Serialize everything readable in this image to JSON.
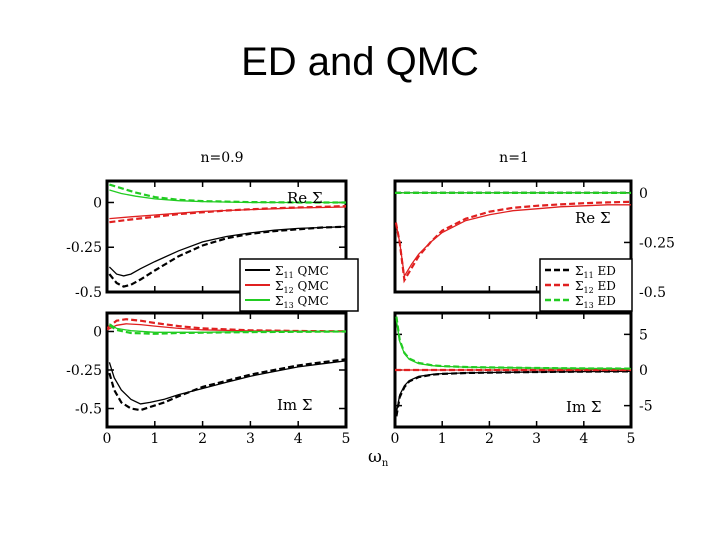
{
  "slide": {
    "title": "ED and QMC"
  },
  "figure": {
    "shared_xlabel": "ωn"
  },
  "colors": {
    "black": "#000000",
    "red": "#e02020",
    "green": "#22cc22"
  },
  "chart_data": [
    {
      "type": "line",
      "title": "n=0.9",
      "panel_label": "Re Σ",
      "xlim": [
        0,
        5
      ],
      "ylim": [
        -0.5,
        0.12
      ],
      "xticks": [],
      "yticks": [
        {
          "v": 0,
          "label": "0"
        },
        {
          "v": -0.25,
          "label": "-0.25"
        },
        {
          "v": -0.5,
          "label": "-0.5"
        }
      ],
      "legend": {
        "placement": "bottom-right",
        "entries": [
          {
            "sub": "11",
            "text": "QMC",
            "color": "black",
            "style": "solid"
          },
          {
            "sub": "12",
            "text": "QMC",
            "color": "red",
            "style": "solid"
          },
          {
            "sub": "13",
            "text": "QMC",
            "color": "green",
            "style": "solid"
          }
        ]
      },
      "series": [
        {
          "color": "black",
          "style": "solid",
          "x": [
            0.05,
            0.2,
            0.35,
            0.5,
            0.7,
            1,
            1.5,
            2,
            2.5,
            3,
            3.5,
            4,
            4.5,
            5
          ],
          "y": [
            -0.36,
            -0.4,
            -0.41,
            -0.4,
            -0.37,
            -0.33,
            -0.27,
            -0.22,
            -0.19,
            -0.17,
            -0.155,
            -0.145,
            -0.14,
            -0.135
          ]
        },
        {
          "color": "black",
          "style": "dashed",
          "x": [
            0.05,
            0.2,
            0.35,
            0.5,
            0.7,
            1,
            1.5,
            2,
            2.5,
            3,
            3.5,
            4,
            4.5,
            5
          ],
          "y": [
            -0.4,
            -0.45,
            -0.47,
            -0.46,
            -0.43,
            -0.38,
            -0.3,
            -0.24,
            -0.2,
            -0.175,
            -0.16,
            -0.15,
            -0.14,
            -0.135
          ]
        },
        {
          "color": "red",
          "style": "solid",
          "x": [
            0.05,
            0.5,
            1,
            1.5,
            2,
            2.5,
            3,
            3.5,
            4,
            4.5,
            5
          ],
          "y": [
            -0.09,
            -0.08,
            -0.07,
            -0.06,
            -0.05,
            -0.045,
            -0.04,
            -0.035,
            -0.03,
            -0.028,
            -0.025
          ]
        },
        {
          "color": "red",
          "style": "dashed",
          "x": [
            0.05,
            0.5,
            1,
            1.5,
            2,
            2.5,
            3,
            3.5,
            4,
            4.5,
            5
          ],
          "y": [
            -0.11,
            -0.095,
            -0.08,
            -0.065,
            -0.055,
            -0.045,
            -0.038,
            -0.032,
            -0.028,
            -0.024,
            -0.02
          ]
        },
        {
          "color": "green",
          "style": "solid",
          "x": [
            0.05,
            0.3,
            0.6,
            1,
            1.5,
            2,
            3,
            4,
            5
          ],
          "y": [
            0.07,
            0.05,
            0.035,
            0.02,
            0.01,
            0.005,
            0,
            0,
            0
          ]
        },
        {
          "color": "green",
          "style": "dashed",
          "x": [
            0.05,
            0.3,
            0.6,
            1,
            1.5,
            2,
            3,
            4,
            5
          ],
          "y": [
            0.1,
            0.08,
            0.055,
            0.03,
            0.015,
            0.008,
            0.002,
            0,
            0
          ]
        }
      ]
    },
    {
      "type": "line",
      "title": "n=1",
      "panel_label": "Re Σ",
      "xlim": [
        0,
        5
      ],
      "ylim": [
        -0.5,
        0.06
      ],
      "xticks": [],
      "yticks": [
        {
          "v": 0,
          "label": "0"
        },
        {
          "v": -0.25,
          "label": "-0.25"
        },
        {
          "v": -0.5,
          "label": "-0.5"
        }
      ],
      "legend": {
        "placement": "bottom-right",
        "entries": [
          {
            "sub": "11",
            "text": "ED",
            "color": "black",
            "style": "dashed"
          },
          {
            "sub": "12",
            "text": "ED",
            "color": "red",
            "style": "dashed"
          },
          {
            "sub": "13",
            "text": "ED",
            "color": "green",
            "style": "dashed"
          }
        ]
      },
      "series": [
        {
          "color": "black",
          "style": "solid",
          "x": [
            0,
            5
          ],
          "y": [
            0,
            0
          ]
        },
        {
          "color": "black",
          "style": "dashed",
          "x": [
            0,
            5
          ],
          "y": [
            0,
            0
          ]
        },
        {
          "color": "red",
          "style": "solid",
          "x": [
            0.02,
            0.1,
            0.2,
            0.35,
            0.5,
            0.75,
            1,
            1.5,
            2,
            2.5,
            3,
            3.5,
            4,
            4.5,
            5
          ],
          "y": [
            -0.15,
            -0.25,
            -0.42,
            -0.36,
            -0.31,
            -0.25,
            -0.2,
            -0.14,
            -0.11,
            -0.09,
            -0.08,
            -0.07,
            -0.065,
            -0.06,
            -0.06
          ]
        },
        {
          "color": "red",
          "style": "dashed",
          "x": [
            0.02,
            0.1,
            0.2,
            0.35,
            0.5,
            0.75,
            1,
            1.5,
            2,
            2.5,
            3,
            3.5,
            4,
            4.5,
            5
          ],
          "y": [
            -0.15,
            -0.25,
            -0.44,
            -0.38,
            -0.32,
            -0.25,
            -0.19,
            -0.13,
            -0.095,
            -0.075,
            -0.065,
            -0.058,
            -0.052,
            -0.048,
            -0.045
          ]
        },
        {
          "color": "green",
          "style": "solid",
          "x": [
            0,
            5
          ],
          "y": [
            0,
            0
          ]
        },
        {
          "color": "green",
          "style": "dashed",
          "x": [
            0,
            5
          ],
          "y": [
            0,
            0
          ]
        }
      ]
    },
    {
      "type": "line",
      "title": "",
      "panel_label": "Im Σ",
      "xlim": [
        0,
        5
      ],
      "ylim": [
        -0.62,
        0.12
      ],
      "xticks": [
        {
          "v": 0,
          "label": "0"
        },
        {
          "v": 1,
          "label": "1"
        },
        {
          "v": 2,
          "label": "2"
        },
        {
          "v": 3,
          "label": "3"
        },
        {
          "v": 4,
          "label": "4"
        },
        {
          "v": 5,
          "label": "5"
        }
      ],
      "yticks": [
        {
          "v": 0,
          "label": "0"
        },
        {
          "v": -0.25,
          "label": "-0.25"
        },
        {
          "v": -0.5,
          "label": "-0.5"
        }
      ],
      "series": [
        {
          "color": "black",
          "style": "solid",
          "x": [
            0.05,
            0.15,
            0.3,
            0.5,
            0.7,
            0.9,
            1.2,
            1.5,
            2,
            2.5,
            3,
            3.5,
            4,
            4.5,
            5
          ],
          "y": [
            -0.2,
            -0.3,
            -0.38,
            -0.44,
            -0.47,
            -0.46,
            -0.44,
            -0.41,
            -0.37,
            -0.33,
            -0.29,
            -0.26,
            -0.23,
            -0.21,
            -0.19
          ]
        },
        {
          "color": "black",
          "style": "dashed",
          "x": [
            0.05,
            0.15,
            0.3,
            0.5,
            0.7,
            0.9,
            1.2,
            1.5,
            2,
            2.5,
            3,
            3.5,
            4,
            4.5,
            5
          ],
          "y": [
            -0.27,
            -0.38,
            -0.46,
            -0.5,
            -0.51,
            -0.49,
            -0.46,
            -0.42,
            -0.36,
            -0.32,
            -0.28,
            -0.25,
            -0.22,
            -0.2,
            -0.18
          ]
        },
        {
          "color": "red",
          "style": "solid",
          "x": [
            0,
            0.2,
            0.4,
            0.7,
            1,
            1.5,
            2,
            3,
            4,
            5
          ],
          "y": [
            0.01,
            0.04,
            0.05,
            0.045,
            0.035,
            0.02,
            0.01,
            0.004,
            0.002,
            0
          ]
        },
        {
          "color": "red",
          "style": "dashed",
          "x": [
            0,
            0.2,
            0.4,
            0.7,
            1,
            1.5,
            2,
            3,
            4,
            5
          ],
          "y": [
            0.02,
            0.07,
            0.08,
            0.07,
            0.055,
            0.035,
            0.02,
            0.008,
            0.003,
            0.001
          ]
        },
        {
          "color": "green",
          "style": "solid",
          "x": [
            0.05,
            0.2,
            0.5,
            1,
            1.5,
            2,
            3,
            4,
            5
          ],
          "y": [
            0.05,
            0.02,
            0.005,
            -0.005,
            -0.005,
            -0.005,
            0,
            0,
            0
          ]
        },
        {
          "color": "green",
          "style": "dashed",
          "x": [
            0.05,
            0.2,
            0.5,
            1,
            1.5,
            2,
            3,
            4,
            5
          ],
          "y": [
            0.04,
            0.01,
            -0.01,
            -0.015,
            -0.01,
            -0.008,
            -0.004,
            -0.002,
            0
          ]
        }
      ]
    },
    {
      "type": "line",
      "title": "",
      "panel_label": "Im Σ",
      "xlim": [
        0,
        5
      ],
      "ylim": [
        -8,
        8
      ],
      "xticks": [
        {
          "v": 0,
          "label": "0"
        },
        {
          "v": 1,
          "label": "1"
        },
        {
          "v": 2,
          "label": "2"
        },
        {
          "v": 3,
          "label": "3"
        },
        {
          "v": 4,
          "label": "4"
        },
        {
          "v": 5,
          "label": "5"
        }
      ],
      "yticks": [
        {
          "v": 5,
          "label": "5"
        },
        {
          "v": 0,
          "label": "0"
        },
        {
          "v": -5,
          "label": "-5"
        }
      ],
      "series": [
        {
          "color": "black",
          "style": "solid",
          "x": [
            0.03,
            0.1,
            0.2,
            0.3,
            0.5,
            0.8,
            1,
            1.5,
            2,
            3,
            4,
            5
          ],
          "y": [
            -6,
            -3.5,
            -2.2,
            -1.5,
            -0.9,
            -0.6,
            -0.5,
            -0.4,
            -0.35,
            -0.28,
            -0.22,
            -0.2
          ]
        },
        {
          "color": "black",
          "style": "dashed",
          "x": [
            0.03,
            0.1,
            0.2,
            0.3,
            0.5,
            0.8,
            1,
            1.5,
            2,
            3,
            4,
            5
          ],
          "y": [
            -6.5,
            -3.8,
            -2.4,
            -1.6,
            -1,
            -0.65,
            -0.55,
            -0.42,
            -0.36,
            -0.28,
            -0.22,
            -0.2
          ]
        },
        {
          "color": "red",
          "style": "solid",
          "x": [
            0,
            5
          ],
          "y": [
            0,
            0
          ]
        },
        {
          "color": "red",
          "style": "dashed",
          "x": [
            0,
            5
          ],
          "y": [
            0,
            0
          ]
        },
        {
          "color": "green",
          "style": "solid",
          "x": [
            0.03,
            0.1,
            0.2,
            0.3,
            0.5,
            0.8,
            1,
            1.5,
            2,
            3,
            4,
            5
          ],
          "y": [
            7,
            4,
            2.3,
            1.5,
            0.9,
            0.6,
            0.5,
            0.4,
            0.35,
            0.28,
            0.22,
            0.2
          ]
        },
        {
          "color": "green",
          "style": "dashed",
          "x": [
            0.03,
            0.1,
            0.2,
            0.3,
            0.5,
            0.8,
            1,
            1.5,
            2,
            3,
            4,
            5
          ],
          "y": [
            7.5,
            4.2,
            2.4,
            1.6,
            1,
            0.65,
            0.55,
            0.42,
            0.36,
            0.28,
            0.22,
            0.2
          ]
        }
      ]
    }
  ]
}
